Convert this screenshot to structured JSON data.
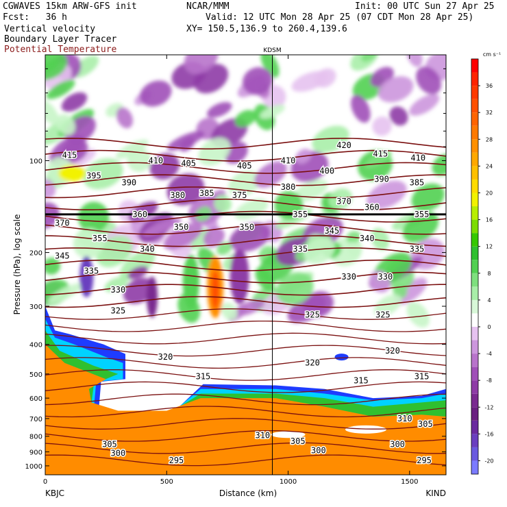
{
  "header": {
    "model": "CGWAVES 15km ARW-GFS init",
    "fcst": "Fcst:   36 h",
    "center": "NCAR/MMM",
    "init": "Init: 00 UTC Sun 27 Apr 25",
    "valid": "Valid: 12 UTC Mon 28 Apr 25 (07 CDT Mon 28 Apr 25)",
    "xy": "XY= 150.5,136.9 to 260.4,139.6",
    "fields": [
      "Vertical velocity",
      "Boundary Layer Tracer",
      "Potential Temperature"
    ]
  },
  "colors": {
    "theta_line": "#7a0f0f",
    "tracer_orange": "#ff8c00",
    "tracer_blue": "#1e3cff"
  },
  "chart_data": {
    "type": "heatmap",
    "title": "",
    "xlabel": "Distance (km)",
    "ylabel": "Pressure (hPa), log scale",
    "xlim": [
      0,
      1650
    ],
    "ylim": [
      1000,
      10
    ],
    "y_log_scale": true,
    "x_ticks": [
      0,
      500,
      1000,
      1500
    ],
    "y_ticks": [
      100,
      200,
      300,
      400,
      500,
      600,
      700,
      800,
      900,
      1000
    ],
    "x_endpoint_labels": [
      "KBJC",
      "KIND"
    ],
    "station_marker": {
      "label": "KDSM",
      "x": 935
    },
    "colorbar": {
      "units": "cm s⁻¹",
      "levels": [
        -22,
        -20,
        -18,
        -16,
        -14,
        -12,
        -10,
        -8,
        -6,
        -4,
        -2,
        0,
        2,
        4,
        6,
        8,
        10,
        12,
        14,
        16,
        18,
        20,
        22,
        24,
        26,
        28,
        30,
        32,
        34,
        36,
        38,
        40
      ],
      "tick_labels": [
        -20,
        -16,
        -12,
        -8,
        -4,
        0,
        4,
        8,
        12,
        16,
        20,
        24,
        28,
        32,
        36
      ],
      "colors": [
        "#7b7bff",
        "#6a5adf",
        "#6a3fbf",
        "#6a2a9f",
        "#6a1f80",
        "#7a2a90",
        "#8e3ca6",
        "#a050b8",
        "#b873cb",
        "#cc96dd",
        "#e6c2f0",
        "#ffffff",
        "#d8f7d8",
        "#a8eea8",
        "#7ee07e",
        "#52d052",
        "#2fc02f",
        "#36c800",
        "#7cdc00",
        "#b8ee00",
        "#f2f200",
        "#ffdc00",
        "#ffc000",
        "#ffa800",
        "#ff9000",
        "#ff7a00",
        "#ff6400",
        "#ff5000",
        "#ff3a00",
        "#ff2400",
        "#ff0000"
      ]
    },
    "theta_contour_labels": [
      {
        "value": 295,
        "x": 540,
        "p": 960
      },
      {
        "value": 295,
        "x": 1560,
        "p": 960
      },
      {
        "value": 300,
        "x": 300,
        "p": 910
      },
      {
        "value": 300,
        "x": 1125,
        "p": 890
      },
      {
        "value": 300,
        "x": 1450,
        "p": 850
      },
      {
        "value": 305,
        "x": 265,
        "p": 850
      },
      {
        "value": 305,
        "x": 1040,
        "p": 830
      },
      {
        "value": 305,
        "x": 1565,
        "p": 730
      },
      {
        "value": 310,
        "x": 895,
        "p": 795
      },
      {
        "value": 310,
        "x": 1480,
        "p": 700
      },
      {
        "value": 315,
        "x": 650,
        "p": 510
      },
      {
        "value": 315,
        "x": 1300,
        "p": 525
      },
      {
        "value": 315,
        "x": 1550,
        "p": 510
      },
      {
        "value": 320,
        "x": 495,
        "p": 440
      },
      {
        "value": 320,
        "x": 1100,
        "p": 460
      },
      {
        "value": 320,
        "x": 1430,
        "p": 420
      },
      {
        "value": 325,
        "x": 300,
        "p": 310
      },
      {
        "value": 325,
        "x": 1100,
        "p": 320
      },
      {
        "value": 325,
        "x": 1390,
        "p": 320
      },
      {
        "value": 330,
        "x": 300,
        "p": 265
      },
      {
        "value": 330,
        "x": 1250,
        "p": 240
      },
      {
        "value": 330,
        "x": 1400,
        "p": 240
      },
      {
        "value": 335,
        "x": 190,
        "p": 230
      },
      {
        "value": 335,
        "x": 1050,
        "p": 195
      },
      {
        "value": 335,
        "x": 1530,
        "p": 195
      },
      {
        "value": 340,
        "x": 420,
        "p": 195
      },
      {
        "value": 340,
        "x": 1325,
        "p": 180
      },
      {
        "value": 345,
        "x": 70,
        "p": 205
      },
      {
        "value": 345,
        "x": 1180,
        "p": 170
      },
      {
        "value": 350,
        "x": 560,
        "p": 165
      },
      {
        "value": 350,
        "x": 830,
        "p": 165
      },
      {
        "value": 355,
        "x": 225,
        "p": 180
      },
      {
        "value": 355,
        "x": 1050,
        "p": 150
      },
      {
        "value": 355,
        "x": 1550,
        "p": 150
      },
      {
        "value": 360,
        "x": 390,
        "p": 150
      },
      {
        "value": 360,
        "x": 1345,
        "p": 142
      },
      {
        "value": 370,
        "x": 70,
        "p": 160
      },
      {
        "value": 370,
        "x": 1230,
        "p": 136
      },
      {
        "value": 375,
        "x": 800,
        "p": 130
      },
      {
        "value": 380,
        "x": 545,
        "p": 130
      },
      {
        "value": 380,
        "x": 1000,
        "p": 122
      },
      {
        "value": 385,
        "x": 665,
        "p": 128
      },
      {
        "value": 385,
        "x": 1530,
        "p": 118
      },
      {
        "value": 390,
        "x": 345,
        "p": 118
      },
      {
        "value": 390,
        "x": 1385,
        "p": 115
      },
      {
        "value": 395,
        "x": 200,
        "p": 112
      },
      {
        "value": 400,
        "x": 1160,
        "p": 108
      },
      {
        "value": 405,
        "x": 590,
        "p": 102
      },
      {
        "value": 405,
        "x": 820,
        "p": 104
      },
      {
        "value": 410,
        "x": 455,
        "p": 100
      },
      {
        "value": 410,
        "x": 1000,
        "p": 100
      },
      {
        "value": 410,
        "x": 1535,
        "p": 98
      },
      {
        "value": 415,
        "x": 100,
        "p": 96
      },
      {
        "value": 415,
        "x": 1380,
        "p": 95
      },
      {
        "value": 420,
        "x": 1230,
        "p": 89
      }
    ]
  }
}
